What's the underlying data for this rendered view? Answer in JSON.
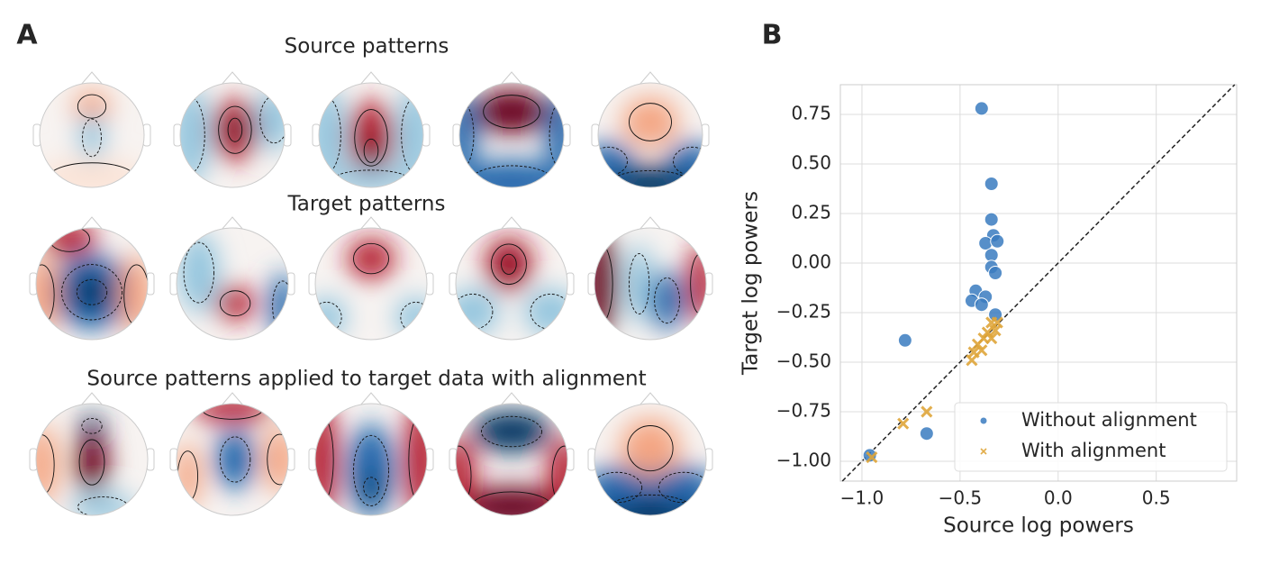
{
  "panel_a": {
    "label": "A",
    "row_titles": [
      "Source patterns",
      "Target patterns",
      "Source patterns applied to target data with alignment"
    ]
  },
  "chart_data": {
    "type": "scatter",
    "panel_label": "B",
    "x_label": "Source log powers",
    "y_label": "Target log powers",
    "xlim": [
      -1.11,
      0.91
    ],
    "ylim": [
      -1.1,
      0.9
    ],
    "xticks": [
      {
        "value": -1.0,
        "label": "−1.0"
      },
      {
        "value": -0.5,
        "label": "−0.5"
      },
      {
        "value": 0.0,
        "label": "0.0"
      },
      0.5
    ],
    "yticks": [
      {
        "value": -1.0,
        "label": "−1.00"
      },
      {
        "value": -0.75,
        "label": "−0.75"
      },
      {
        "value": -0.5,
        "label": "−0.50"
      },
      {
        "value": -0.25,
        "label": "−0.25"
      },
      {
        "value": 0.0,
        "label": "0.00"
      },
      0.25,
      {
        "value": 0.5,
        "label": "0.50"
      },
      0.75
    ],
    "grid": true,
    "diagonal": true,
    "legend": "lower right",
    "series": [
      {
        "name": "Without alignment",
        "color": "#3a7bbf",
        "marker": "circle",
        "x": [
          -0.39,
          -0.34,
          -0.34,
          -0.33,
          -0.37,
          -0.31,
          -0.34,
          -0.34,
          -0.32,
          -0.42,
          -0.37,
          -0.44,
          -0.39,
          -0.32,
          -0.78,
          -0.67,
          -0.96
        ],
        "values": [
          0.78,
          0.4,
          0.22,
          0.14,
          0.1,
          0.11,
          0.04,
          -0.02,
          -0.05,
          -0.14,
          -0.17,
          -0.19,
          -0.21,
          -0.26,
          -0.39,
          -0.86,
          -0.97
        ]
      },
      {
        "name": "With alignment",
        "color": "#dfa53a",
        "marker": "x",
        "x": [
          -0.34,
          -0.31,
          -0.36,
          -0.32,
          -0.38,
          -0.34,
          -0.41,
          -0.39,
          -0.43,
          -0.44,
          -0.67,
          -0.79,
          -0.95
        ],
        "values": [
          -0.3,
          -0.3,
          -0.35,
          -0.34,
          -0.38,
          -0.38,
          -0.41,
          -0.44,
          -0.45,
          -0.49,
          -0.75,
          -0.81,
          -0.98
        ]
      }
    ]
  }
}
